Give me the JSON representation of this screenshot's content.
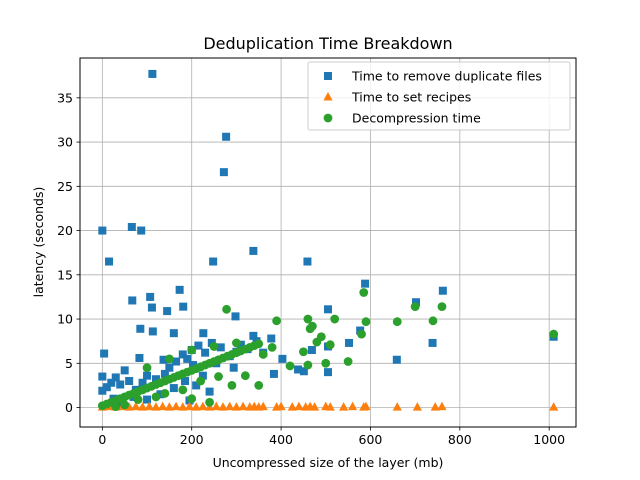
{
  "chart_data": {
    "type": "scatter",
    "title": "Deduplication Time Breakdown",
    "xlabel": "Uncompressed size of the layer (mb)",
    "ylabel": "latency (seconds)",
    "xlim": [
      -50,
      1060
    ],
    "ylim": [
      -2.2,
      39.5
    ],
    "xticks": [
      0,
      200,
      400,
      600,
      800,
      1000
    ],
    "yticks": [
      0,
      5,
      10,
      15,
      20,
      25,
      30,
      35
    ],
    "grid": true,
    "legend_position": "top-right",
    "series": [
      {
        "name": "Time to remove duplicate files",
        "marker": "square",
        "color": "#1f77b4",
        "points": [
          [
            112,
            37.7
          ],
          [
            277,
            30.6
          ],
          [
            272,
            26.6
          ],
          [
            0,
            20.0
          ],
          [
            66,
            20.4
          ],
          [
            87,
            20.0
          ],
          [
            15,
            16.5
          ],
          [
            248,
            16.5
          ],
          [
            338,
            17.7
          ],
          [
            459,
            16.5
          ],
          [
            588,
            14.0
          ],
          [
            762,
            13.2
          ],
          [
            173,
            13.3
          ],
          [
            107,
            12.5
          ],
          [
            67,
            12.1
          ],
          [
            702,
            11.9
          ],
          [
            181,
            11.4
          ],
          [
            111,
            11.3
          ],
          [
            145,
            10.9
          ],
          [
            505,
            11.1
          ],
          [
            298,
            10.3
          ],
          [
            85,
            8.9
          ],
          [
            113,
            8.6
          ],
          [
            160,
            8.4
          ],
          [
            226,
            8.4
          ],
          [
            338,
            8.1
          ],
          [
            378,
            7.8
          ],
          [
            552,
            7.3
          ],
          [
            739,
            7.3
          ],
          [
            1010,
            8.0
          ],
          [
            4,
            6.1
          ],
          [
            83,
            5.6
          ],
          [
            137,
            5.4
          ],
          [
            300,
            6.3
          ],
          [
            403,
            5.5
          ],
          [
            469,
            6.5
          ],
          [
            505,
            6.9
          ],
          [
            577,
            8.7
          ],
          [
            659,
            5.4
          ],
          [
            438,
            4.3
          ],
          [
            451,
            4.1
          ],
          [
            505,
            4.0
          ],
          [
            384,
            3.8
          ],
          [
            294,
            4.5
          ],
          [
            203,
            4.8
          ],
          [
            50,
            4.2
          ],
          [
            30,
            3.4
          ],
          [
            0,
            3.5
          ],
          [
            0,
            1.9
          ],
          [
            10,
            2.3
          ],
          [
            20,
            2.8
          ],
          [
            40,
            2.6
          ],
          [
            60,
            3.0
          ],
          [
            75,
            2.0
          ],
          [
            90,
            2.8
          ],
          [
            100,
            3.6
          ],
          [
            120,
            3.2
          ],
          [
            140,
            3.8
          ],
          [
            150,
            4.5
          ],
          [
            165,
            5.2
          ],
          [
            180,
            6.0
          ],
          [
            190,
            5.5
          ],
          [
            200,
            6.5
          ],
          [
            215,
            7.0
          ],
          [
            230,
            6.2
          ],
          [
            245,
            7.3
          ],
          [
            255,
            5.0
          ],
          [
            265,
            6.8
          ],
          [
            285,
            5.8
          ],
          [
            310,
            7.1
          ],
          [
            325,
            6.6
          ],
          [
            345,
            7.5
          ],
          [
            360,
            6.2
          ],
          [
            210,
            2.5
          ],
          [
            240,
            1.8
          ],
          [
            130,
            1.5
          ],
          [
            70,
            1.2
          ],
          [
            25,
            1.0
          ],
          [
            160,
            2.2
          ],
          [
            185,
            3.0
          ],
          [
            225,
            3.6
          ],
          [
            195,
            0.8
          ],
          [
            45,
            0.5
          ],
          [
            100,
            0.9
          ]
        ]
      },
      {
        "name": "Time to set recipes",
        "marker": "triangle",
        "color": "#ff7f0e",
        "points": [
          [
            0,
            0.05
          ],
          [
            15,
            0.1
          ],
          [
            30,
            0.05
          ],
          [
            45,
            0.1
          ],
          [
            60,
            0.05
          ],
          [
            75,
            0.1
          ],
          [
            90,
            0.05
          ],
          [
            105,
            0.1
          ],
          [
            120,
            0.05
          ],
          [
            135,
            0.1
          ],
          [
            150,
            0.05
          ],
          [
            165,
            0.1
          ],
          [
            180,
            0.05
          ],
          [
            195,
            0.1
          ],
          [
            210,
            0.05
          ],
          [
            225,
            0.1
          ],
          [
            240,
            0.05
          ],
          [
            255,
            0.1
          ],
          [
            270,
            0.05
          ],
          [
            285,
            0.1
          ],
          [
            300,
            0.05
          ],
          [
            315,
            0.1
          ],
          [
            330,
            0.05
          ],
          [
            340,
            0.1
          ],
          [
            350,
            0.05
          ],
          [
            360,
            0.1
          ],
          [
            390,
            0.05
          ],
          [
            400,
            0.1
          ],
          [
            425,
            0.05
          ],
          [
            440,
            0.1
          ],
          [
            455,
            0.05
          ],
          [
            465,
            0.1
          ],
          [
            475,
            0.05
          ],
          [
            500,
            0.1
          ],
          [
            510,
            0.05
          ],
          [
            540,
            0.05
          ],
          [
            560,
            0.1
          ],
          [
            585,
            0.05
          ],
          [
            590,
            0.1
          ],
          [
            660,
            0.05
          ],
          [
            705,
            0.05
          ],
          [
            745,
            0.05
          ],
          [
            760,
            0.1
          ],
          [
            1010,
            0.05
          ]
        ]
      },
      {
        "name": "Decompression time",
        "marker": "circle",
        "color": "#2ca02c",
        "points": [
          [
            0,
            0.2
          ],
          [
            10,
            0.4
          ],
          [
            20,
            0.6
          ],
          [
            30,
            0.8
          ],
          [
            40,
            1.0
          ],
          [
            50,
            1.2
          ],
          [
            60,
            1.4
          ],
          [
            70,
            1.6
          ],
          [
            80,
            1.8
          ],
          [
            90,
            2.0
          ],
          [
            100,
            2.2
          ],
          [
            110,
            2.4
          ],
          [
            120,
            2.6
          ],
          [
            130,
            2.8
          ],
          [
            140,
            3.0
          ],
          [
            150,
            3.2
          ],
          [
            160,
            3.4
          ],
          [
            170,
            3.6
          ],
          [
            180,
            3.8
          ],
          [
            190,
            4.0
          ],
          [
            200,
            4.2
          ],
          [
            210,
            4.4
          ],
          [
            220,
            4.6
          ],
          [
            230,
            4.8
          ],
          [
            240,
            5.0
          ],
          [
            250,
            5.2
          ],
          [
            260,
            5.4
          ],
          [
            270,
            5.6
          ],
          [
            280,
            5.8
          ],
          [
            290,
            6.0
          ],
          [
            300,
            6.2
          ],
          [
            310,
            6.4
          ],
          [
            320,
            6.6
          ],
          [
            330,
            6.8
          ],
          [
            340,
            7.0
          ],
          [
            350,
            7.2
          ],
          [
            360,
            6.0
          ],
          [
            100,
            4.5
          ],
          [
            150,
            5.5
          ],
          [
            200,
            6.5
          ],
          [
            250,
            6.9
          ],
          [
            300,
            7.3
          ],
          [
            120,
            1.2
          ],
          [
            180,
            2.0
          ],
          [
            220,
            3.0
          ],
          [
            260,
            3.5
          ],
          [
            290,
            2.5
          ],
          [
            320,
            3.6
          ],
          [
            350,
            2.5
          ],
          [
            380,
            6.8
          ],
          [
            390,
            9.8
          ],
          [
            420,
            4.7
          ],
          [
            450,
            6.3
          ],
          [
            460,
            10.0
          ],
          [
            465,
            8.9
          ],
          [
            470,
            9.2
          ],
          [
            480,
            7.4
          ],
          [
            490,
            8.0
          ],
          [
            500,
            5.0
          ],
          [
            510,
            7.1
          ],
          [
            520,
            10.0
          ],
          [
            550,
            5.2
          ],
          [
            580,
            8.3
          ],
          [
            585,
            13.0
          ],
          [
            590,
            9.7
          ],
          [
            660,
            9.7
          ],
          [
            700,
            11.4
          ],
          [
            740,
            9.8
          ],
          [
            760,
            11.4
          ],
          [
            1010,
            8.3
          ],
          [
            278,
            11.1
          ],
          [
            460,
            4.8
          ],
          [
            50,
            0.3
          ],
          [
            80,
            0.9
          ],
          [
            140,
            1.6
          ],
          [
            200,
            1.0
          ],
          [
            240,
            0.6
          ],
          [
            30,
            0.1
          ]
        ]
      }
    ]
  }
}
